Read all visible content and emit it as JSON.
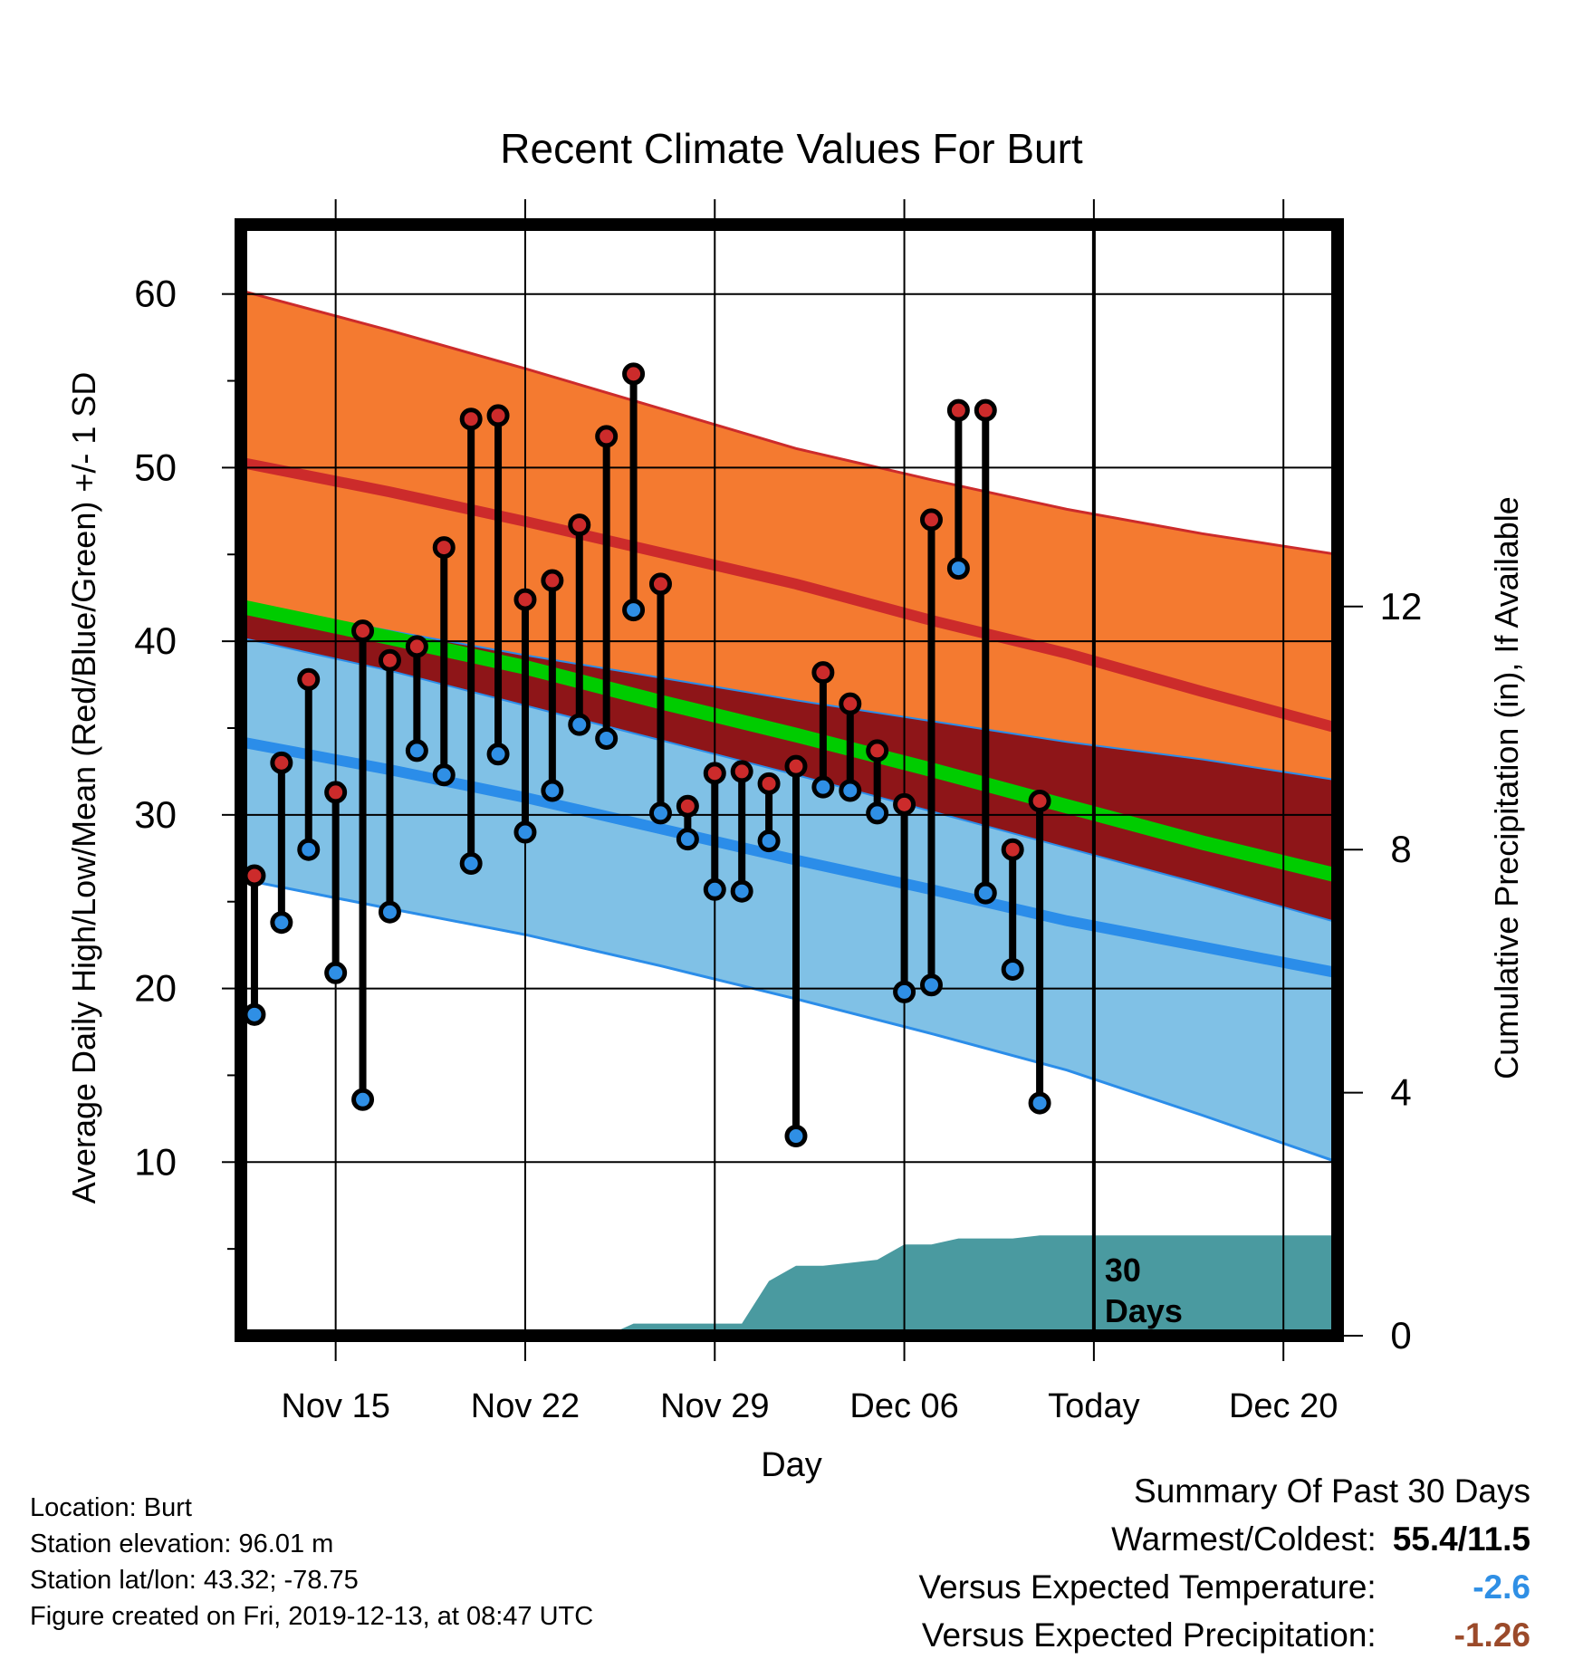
{
  "chart_data": {
    "type": "line",
    "title": "Recent Climate Values For Burt",
    "xlabel": "Day",
    "ylabel": "Average Daily High/Low/Mean (Red/Blue/Green) +/- 1 SD",
    "y2label": "Cumulative Precipitation (in), If Available",
    "xlim": [
      -0.5,
      40
    ],
    "ylim": [
      0,
      64
    ],
    "y2lim": [
      0,
      18.286
    ],
    "x_ticks": [
      {
        "x": 3,
        "label": "Nov 15"
      },
      {
        "x": 10,
        "label": "Nov 22"
      },
      {
        "x": 17,
        "label": "Nov 29"
      },
      {
        "x": 24,
        "label": "Dec 06"
      },
      {
        "x": 31,
        "label": "Today"
      },
      {
        "x": 38,
        "label": "Dec 20"
      }
    ],
    "y_ticks": [
      10,
      20,
      30,
      40,
      50,
      60
    ],
    "y2_ticks": [
      0,
      4,
      8,
      12
    ],
    "grid": true,
    "today_x": 31,
    "today_label": "30 Days",
    "normals": {
      "x": [
        -0.5,
        5,
        10,
        15,
        20,
        25,
        30,
        35,
        40
      ],
      "high_upper": [
        60.2,
        57.9,
        55.7,
        53.4,
        51.1,
        49.3,
        47.6,
        46.2,
        45.0
      ],
      "high_mean": [
        50.3,
        48.6,
        46.9,
        45.1,
        43.3,
        41.2,
        39.3,
        37.1,
        35.0
      ],
      "high_lower": [
        42.2,
        40.6,
        39.2,
        37.9,
        36.6,
        35.4,
        34.2,
        33.2,
        32.0
      ],
      "mean": [
        42.0,
        40.2,
        38.5,
        36.5,
        34.6,
        32.6,
        30.5,
        28.4,
        26.5
      ],
      "low_upper": [
        40.2,
        38.3,
        36.3,
        34.3,
        32.3,
        30.2,
        28.1,
        26.0,
        23.8
      ],
      "low_mean": [
        34.2,
        32.6,
        31.0,
        29.2,
        27.4,
        25.7,
        23.9,
        22.4,
        20.9
      ],
      "low_lower": [
        26.3,
        24.6,
        23.1,
        21.3,
        19.4,
        17.4,
        15.3,
        12.7,
        10.0
      ]
    },
    "series": [
      {
        "name": "High",
        "color": "#cc2b2b",
        "values": [
          26.5,
          33.0,
          37.8,
          31.3,
          40.6,
          38.9,
          39.7,
          45.4,
          52.8,
          53.0,
          42.4,
          43.5,
          46.7,
          51.8,
          55.4,
          43.3,
          30.5,
          32.4,
          32.5,
          31.8,
          32.8,
          38.2,
          36.4,
          33.7,
          30.6,
          47.0,
          53.3,
          53.3,
          28.0,
          30.8
        ]
      },
      {
        "name": "Low",
        "color": "#2f8fe5",
        "values": [
          18.5,
          23.8,
          28.0,
          20.9,
          13.6,
          24.4,
          33.7,
          32.3,
          27.2,
          33.5,
          29.0,
          31.4,
          35.2,
          34.4,
          41.8,
          30.1,
          28.6,
          25.7,
          25.6,
          28.5,
          11.5,
          31.6,
          31.4,
          30.1,
          19.8,
          20.2,
          44.2,
          25.5,
          21.1,
          13.4
        ]
      }
    ],
    "days_x": [
      0,
      1,
      2,
      3,
      4,
      5,
      6,
      7,
      8,
      9,
      10,
      11,
      12,
      13,
      14,
      15,
      16,
      17,
      18,
      19,
      20,
      21,
      22,
      23,
      24,
      25,
      26,
      27,
      28,
      29
    ],
    "precip": {
      "x": [
        -0.5,
        13,
        14,
        15,
        16,
        17,
        18,
        19,
        20,
        21,
        22,
        23,
        24,
        25,
        26,
        27,
        28,
        29,
        30,
        31,
        40
      ],
      "values": [
        0,
        0,
        0.2,
        0.2,
        0.2,
        0.2,
        0.2,
        0.9,
        1.15,
        1.15,
        1.2,
        1.25,
        1.5,
        1.5,
        1.6,
        1.6,
        1.6,
        1.65,
        1.65,
        1.65,
        1.65
      ]
    }
  },
  "footer": {
    "location": "Location: Burt",
    "elevation": "Station elevation: 96.01 m",
    "latlon": "Station lat/lon: 43.32; -78.75",
    "created": "Figure created on Fri, 2019-12-13, at 08:47 UTC"
  },
  "summary": {
    "title": "Summary Of Past 30 Days",
    "warm_label": "Warmest/Coldest:",
    "warm_value": "55.4/11.5",
    "temp_label": "Versus Expected Temperature:",
    "temp_value": "-2.6",
    "temp_color": "#2f8fe5",
    "precip_label": "Versus Expected Precipitation:",
    "precip_value": "-1.26",
    "precip_color": "#9b4a2a"
  },
  "colors": {
    "high_band": "#f47a30",
    "high_line": "#cc2b2b",
    "overlap_band": "#8e1518",
    "low_band": "#80c1e6",
    "low_line": "#2b8de9",
    "mean_line": "#00cc00",
    "precip_fill": "#4a9aa0"
  }
}
